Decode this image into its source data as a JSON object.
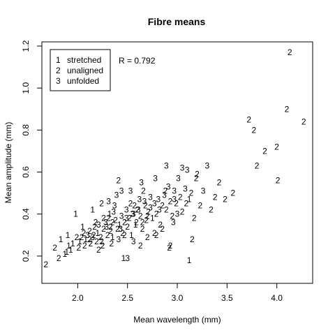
{
  "chart_data": {
    "type": "scatter",
    "title": "Fibre means",
    "xlabel": "Mean wavelength (mm)",
    "ylabel": "Mean amplitude (mm)",
    "xlim": [
      1.64,
      4.36
    ],
    "ylim": [
      0.07,
      1.22
    ],
    "x_ticks": [
      2.0,
      2.5,
      3.0,
      3.5,
      4.0
    ],
    "y_ticks": [
      0.2,
      0.4,
      0.6,
      0.8,
      1.0,
      1.2
    ],
    "x_tick_labels": [
      "2.0",
      "2.5",
      "3.0",
      "3.5",
      "4.0"
    ],
    "y_tick_labels": [
      "0.2",
      "0.4",
      "0.6",
      "0.8",
      "1.0",
      "1.2"
    ],
    "grid": false,
    "legend": {
      "position": "top-left",
      "entries": [
        {
          "symbol": "1",
          "label": "stretched"
        },
        {
          "symbol": "2",
          "label": "unaligned"
        },
        {
          "symbol": "3",
          "label": "unfolded"
        }
      ]
    },
    "annotation": "R = 0.792",
    "points": [
      [
        1.68,
        0.16,
        "2"
      ],
      [
        1.77,
        0.24,
        "2"
      ],
      [
        1.81,
        0.19,
        "2"
      ],
      [
        1.83,
        0.28,
        "1"
      ],
      [
        1.87,
        0.21,
        "1"
      ],
      [
        1.89,
        0.22,
        "1"
      ],
      [
        1.91,
        0.25,
        "1"
      ],
      [
        1.93,
        0.23,
        "1"
      ],
      [
        1.95,
        0.26,
        "1"
      ],
      [
        1.99,
        0.29,
        "2"
      ],
      [
        2.01,
        0.24,
        "2"
      ],
      [
        2.02,
        0.27,
        "1"
      ],
      [
        2.04,
        0.29,
        "2"
      ],
      [
        2.06,
        0.31,
        "2"
      ],
      [
        2.08,
        0.28,
        "1"
      ],
      [
        2.1,
        0.3,
        "3"
      ],
      [
        2.12,
        0.32,
        "2"
      ],
      [
        2.13,
        0.26,
        "2"
      ],
      [
        2.15,
        0.29,
        "3"
      ],
      [
        2.17,
        0.34,
        "2"
      ],
      [
        2.19,
        0.27,
        "2"
      ],
      [
        2.2,
        0.31,
        "1"
      ],
      [
        2.21,
        0.35,
        "3"
      ],
      [
        2.23,
        0.29,
        "2"
      ],
      [
        2.24,
        0.27,
        "2"
      ],
      [
        2.26,
        0.33,
        "2"
      ],
      [
        2.28,
        0.36,
        "3"
      ],
      [
        2.3,
        0.3,
        "2"
      ],
      [
        2.31,
        0.38,
        "2"
      ],
      [
        2.33,
        0.34,
        "2"
      ],
      [
        2.35,
        0.29,
        "1"
      ],
      [
        2.36,
        0.41,
        "3"
      ],
      [
        2.38,
        0.37,
        "2"
      ],
      [
        2.4,
        0.33,
        "2"
      ],
      [
        2.42,
        0.35,
        "1"
      ],
      [
        2.44,
        0.39,
        "3"
      ],
      [
        2.45,
        0.31,
        "2"
      ],
      [
        2.47,
        0.36,
        "2"
      ],
      [
        2.49,
        0.42,
        "3"
      ],
      [
        2.5,
        0.34,
        "2"
      ],
      [
        2.52,
        0.38,
        "2"
      ],
      [
        2.54,
        0.3,
        "1"
      ],
      [
        2.56,
        0.4,
        "3"
      ],
      [
        2.57,
        0.44,
        "2"
      ],
      [
        2.59,
        0.36,
        "2"
      ],
      [
        2.61,
        0.42,
        "3"
      ],
      [
        2.63,
        0.39,
        "2"
      ],
      [
        2.65,
        0.33,
        "2"
      ],
      [
        2.67,
        0.46,
        "3"
      ],
      [
        2.69,
        0.37,
        "2"
      ],
      [
        2.71,
        0.41,
        "2"
      ],
      [
        2.73,
        0.43,
        "3"
      ],
      [
        2.75,
        0.38,
        "1"
      ],
      [
        2.77,
        0.45,
        "3"
      ],
      [
        2.79,
        0.4,
        "2"
      ],
      [
        2.81,
        0.47,
        "3"
      ],
      [
        2.83,
        0.35,
        "2"
      ],
      [
        2.85,
        0.44,
        "2"
      ],
      [
        2.87,
        0.49,
        "3"
      ],
      [
        2.89,
        0.42,
        "2"
      ],
      [
        2.91,
        0.53,
        "3"
      ],
      [
        2.93,
        0.46,
        "2"
      ],
      [
        2.95,
        0.39,
        "2"
      ],
      [
        2.97,
        0.51,
        "3"
      ],
      [
        2.99,
        0.45,
        "2"
      ],
      [
        3.01,
        0.57,
        "3"
      ],
      [
        3.03,
        0.48,
        "2"
      ],
      [
        3.05,
        0.41,
        "2"
      ],
      [
        3.08,
        0.52,
        "3"
      ],
      [
        3.1,
        0.61,
        "3"
      ],
      [
        3.12,
        0.47,
        "1"
      ],
      [
        3.14,
        0.5,
        "2"
      ],
      [
        3.17,
        0.38,
        "2"
      ],
      [
        3.2,
        0.59,
        "2"
      ],
      [
        3.23,
        0.44,
        "2"
      ],
      [
        3.26,
        0.51,
        "3"
      ],
      [
        3.3,
        0.63,
        "3"
      ],
      [
        3.34,
        0.42,
        "2"
      ],
      [
        3.38,
        0.48,
        "2"
      ],
      [
        3.42,
        0.55,
        "2"
      ],
      [
        3.48,
        0.47,
        "2"
      ],
      [
        3.56,
        0.5,
        "2"
      ],
      [
        3.72,
        0.85,
        "2"
      ],
      [
        3.77,
        0.8,
        "2"
      ],
      [
        3.8,
        0.63,
        "2"
      ],
      [
        3.88,
        0.7,
        "2"
      ],
      [
        4.0,
        0.72,
        "2"
      ],
      [
        4.01,
        0.56,
        "2"
      ],
      [
        4.1,
        0.9,
        "2"
      ],
      [
        4.13,
        1.17,
        "2"
      ],
      [
        4.27,
        0.84,
        "2"
      ],
      [
        3.12,
        0.18,
        "1"
      ],
      [
        2.93,
        0.25,
        "2"
      ],
      [
        2.92,
        0.24,
        "2"
      ],
      [
        2.56,
        0.27,
        "3"
      ],
      [
        2.5,
        0.19,
        "3"
      ],
      [
        2.46,
        0.19,
        "1"
      ],
      [
        2.25,
        0.25,
        "2"
      ],
      [
        2.21,
        0.23,
        "2"
      ],
      [
        2.34,
        0.26,
        "2"
      ],
      [
        2.41,
        0.28,
        "3"
      ],
      [
        2.63,
        0.25,
        "2"
      ],
      [
        2.7,
        0.29,
        "2"
      ],
      [
        3.15,
        0.28,
        "2"
      ],
      [
        2.79,
        0.3,
        "2"
      ],
      [
        2.32,
        0.4,
        "1"
      ],
      [
        2.15,
        0.42,
        "1"
      ],
      [
        2.24,
        0.45,
        "2"
      ],
      [
        2.31,
        0.46,
        "3"
      ],
      [
        2.39,
        0.49,
        "3"
      ],
      [
        2.44,
        0.51,
        "3"
      ],
      [
        2.53,
        0.51,
        "3"
      ],
      [
        2.64,
        0.55,
        "3"
      ],
      [
        2.78,
        0.57,
        "3"
      ],
      [
        2.89,
        0.63,
        "3"
      ],
      [
        3.05,
        0.62,
        "3"
      ],
      [
        2.96,
        0.36,
        "3"
      ],
      [
        2.85,
        0.33,
        "2"
      ],
      [
        2.77,
        0.31,
        "2"
      ],
      [
        2.55,
        0.4,
        "3"
      ],
      [
        2.26,
        0.38,
        "2"
      ],
      [
        2.33,
        0.32,
        "2"
      ],
      [
        2.53,
        0.45,
        "2"
      ],
      [
        2.66,
        0.51,
        "2"
      ],
      [
        2.41,
        0.56,
        "2"
      ],
      [
        2.6,
        0.42,
        "2"
      ],
      [
        2.73,
        0.48,
        "3"
      ],
      [
        2.82,
        0.42,
        "3"
      ],
      [
        2.97,
        0.47,
        "3"
      ],
      [
        3.19,
        0.57,
        "2"
      ],
      [
        2.65,
        0.36,
        "2"
      ],
      [
        2.88,
        0.51,
        "2"
      ],
      [
        2.47,
        0.3,
        "2"
      ],
      [
        2.18,
        0.36,
        "2"
      ],
      [
        2.29,
        0.34,
        "3"
      ],
      [
        2.37,
        0.44,
        "3"
      ],
      [
        2.7,
        0.39,
        "2"
      ],
      [
        2.12,
        0.28,
        "2"
      ],
      [
        2.07,
        0.25,
        "2"
      ],
      [
        1.98,
        0.4,
        "1"
      ],
      [
        2.05,
        0.34,
        "1"
      ],
      [
        3.09,
        0.45,
        "2"
      ],
      [
        3.0,
        0.4,
        "3"
      ],
      [
        2.49,
        0.38,
        "3"
      ],
      [
        2.58,
        0.35,
        "1"
      ],
      [
        2.62,
        0.47,
        "3"
      ],
      [
        2.35,
        0.36,
        "2"
      ],
      [
        2.43,
        0.33,
        "3"
      ],
      [
        2.68,
        0.44,
        "2"
      ],
      [
        2.16,
        0.3,
        "2"
      ],
      [
        1.9,
        0.3,
        "1"
      ]
    ]
  }
}
